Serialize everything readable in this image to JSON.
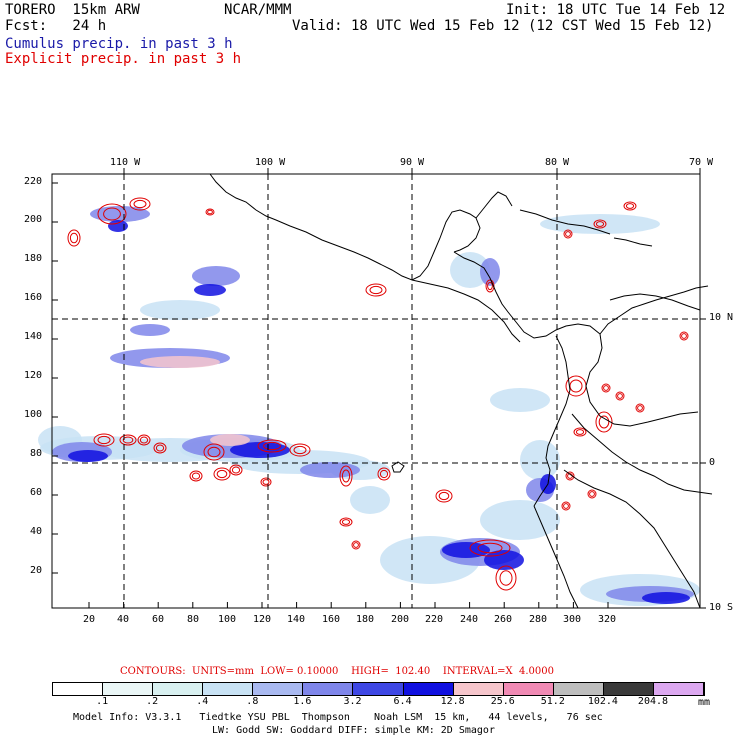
{
  "header": {
    "title": "TORERO  15km ARW",
    "center": "NCAR/MMM",
    "init": "Init: 18 UTC Tue 14 Feb 12",
    "fcst": "Fcst:   24 h",
    "valid": "Valid: 18 UTC Wed 15 Feb 12 (12 CST Wed 15 Feb 12)",
    "legend_cumulus": "Cumulus precip. in past 3 h",
    "legend_explicit": "Explicit precip. in past 3 h"
  },
  "colors": {
    "cumulus": "#1a1aa8",
    "explicit": "#e00000",
    "coast": "#000000"
  },
  "map": {
    "lon_labels": [
      "110 W",
      "100 W",
      "90 W",
      "80 W",
      "70 W"
    ],
    "lat_labels": [
      "10 N",
      "0",
      "10 S"
    ],
    "y_ticks": [
      "220",
      "200",
      "180",
      "160",
      "140",
      "120",
      "100",
      "80",
      "60",
      "40",
      "20"
    ],
    "x_ticks": [
      "20",
      "40",
      "60",
      "80",
      "100",
      "120",
      "140",
      "160",
      "180",
      "200",
      "220",
      "240",
      "260",
      "280",
      "300",
      "320"
    ]
  },
  "contour_info": {
    "text": "CONTOURS:  UNITS=mm  LOW= 0.10000    HIGH=  102.40    INTERVAL=X  4.0000"
  },
  "colorbar": {
    "units": "mm",
    "labels": [
      ".1",
      ".2",
      ".4",
      ".8",
      "1.6",
      "3.2",
      "6.4",
      "12.8",
      "25.6",
      "51.2",
      "102.4",
      "204.8"
    ],
    "colors": [
      "#ffffff",
      "#eaf6f6",
      "#d8f0f0",
      "#c8e2f4",
      "#a9b9f0",
      "#7f86ea",
      "#3e47e4",
      "#1010e0",
      "#f6c6cc",
      "#f08ab4",
      "#bebebe",
      "#3a3a3a",
      "#dca8f0"
    ]
  },
  "footer": {
    "line1": "Model Info: V3.3.1   Tiedtke YSU PBL  Thompson    Noah LSM  15 km,   44 levels,   76 sec",
    "line2": "LW: Godd SW: Goddard DIFF: simple KM: 2D Smagor"
  }
}
